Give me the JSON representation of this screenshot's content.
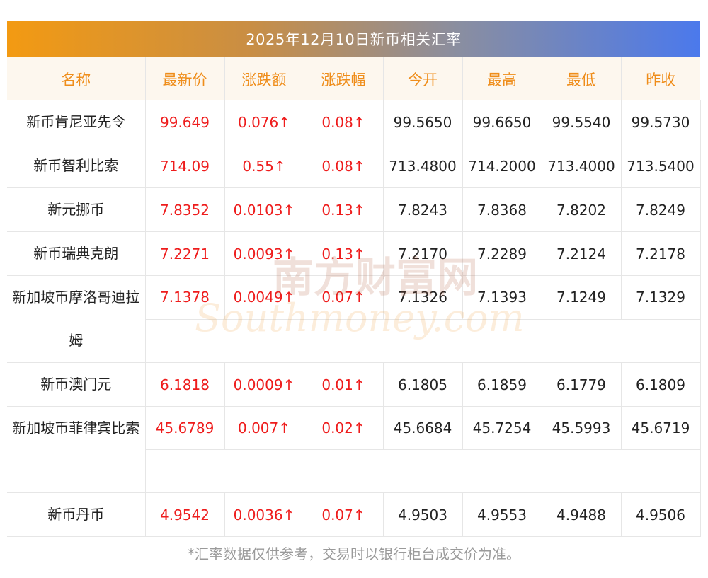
{
  "title": "2025年12月10日新币相关汇率",
  "headers": [
    "名称",
    "最新价",
    "涨跌额",
    "涨跌幅",
    "今开",
    "最高",
    "最低",
    "昨收"
  ],
  "rows": [
    {
      "name": "新币肯尼亚先令",
      "latest": "99.649",
      "change": "0.076↑",
      "pct": "0.08↑",
      "open": "99.5650",
      "high": "99.6650",
      "low": "99.5540",
      "prev": "99.5730"
    },
    {
      "name": "新币智利比索",
      "latest": "714.09",
      "change": "0.55↑",
      "pct": "0.08↑",
      "open": "713.4800",
      "high": "714.2000",
      "low": "713.4000",
      "prev": "713.5400"
    },
    {
      "name": "新元挪币",
      "latest": "7.8352",
      "change": "0.0103↑",
      "pct": "0.13↑",
      "open": "7.8243",
      "high": "7.8368",
      "low": "7.8202",
      "prev": "7.8249"
    },
    {
      "name": "新币瑞典克朗",
      "latest": "7.2271",
      "change": "0.0093↑",
      "pct": "0.13↑",
      "open": "7.2170",
      "high": "7.2289",
      "low": "7.2124",
      "prev": "7.2178"
    },
    {
      "name": "新加坡币摩洛哥迪拉姆",
      "latest": "7.1378",
      "change": "0.0049↑",
      "pct": "0.07↑",
      "open": "7.1326",
      "high": "7.1393",
      "low": "7.1249",
      "prev": "7.1329"
    },
    {
      "name": "新币澳门元",
      "latest": "6.1818",
      "change": "0.0009↑",
      "pct": "0.01↑",
      "open": "6.1805",
      "high": "6.1859",
      "low": "6.1779",
      "prev": "6.1809"
    },
    {
      "name": "新加坡币菲律宾比索",
      "latest": "45.6789",
      "change": "0.007↑",
      "pct": "0.02↑",
      "open": "45.6684",
      "high": "45.7254",
      "low": "45.5993",
      "prev": "45.6719"
    },
    {
      "name": "新币丹币",
      "latest": "4.9542",
      "change": "0.0036↑",
      "pct": "0.07↑",
      "open": "4.9503",
      "high": "4.9553",
      "low": "4.9488",
      "prev": "4.9506"
    }
  ],
  "note": "*汇率数据仅供参考，交易时以银行柜台成交价为准。",
  "watermark": {
    "cn": "南方财富网",
    "en": "Southmoney.com"
  },
  "colors": {
    "accent": "#ef8d1a",
    "up": "#ee1c1c",
    "header_bg": "#fdf7ee",
    "gradient_start": "#f39a12",
    "gradient_end": "#4b79ec"
  }
}
